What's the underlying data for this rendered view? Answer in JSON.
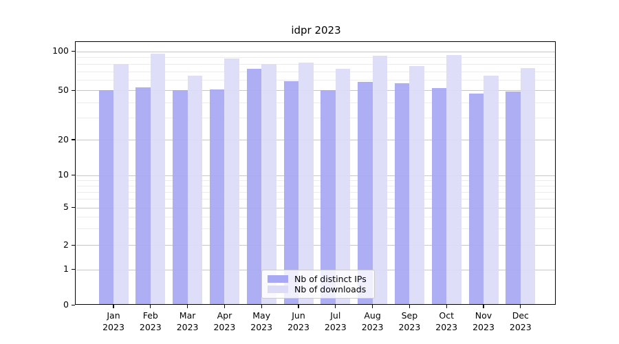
{
  "chart_data": {
    "type": "bar",
    "title": "idpr 2023",
    "categories": [
      "Jan 2023",
      "Feb 2023",
      "Mar 2023",
      "Apr 2023",
      "May 2023",
      "Jun 2023",
      "Jul 2023",
      "Aug 2023",
      "Sep 2023",
      "Oct 2023",
      "Nov 2023",
      "Dec 2023"
    ],
    "series": [
      {
        "name": "Nb of distinct IPs",
        "color": "#a8a8f4",
        "values": [
          50,
          53,
          50,
          51,
          73,
          59,
          50,
          58,
          57,
          52,
          47,
          49
        ]
      },
      {
        "name": "Nb of downloads",
        "color": "#dcdcf9",
        "values": [
          80,
          96,
          65,
          88,
          80,
          82,
          73,
          92,
          77,
          94,
          65,
          74
        ]
      }
    ],
    "xlabel": "",
    "ylabel": "",
    "y_axis": {
      "scale": "log-like",
      "major_ticks": [
        0,
        1,
        2,
        5,
        10,
        20,
        50,
        100
      ],
      "minor_gridlines": [
        3,
        4,
        6,
        7,
        8,
        9,
        30,
        40,
        60,
        70,
        80,
        90
      ],
      "ylim": [
        0,
        115
      ]
    },
    "grid": "on",
    "legend_position": "lower center",
    "colors": {
      "major_gridline": "#c6c6c6",
      "minor_gridline": "#ececec",
      "axis": "#000000",
      "background": "#ffffff"
    }
  }
}
